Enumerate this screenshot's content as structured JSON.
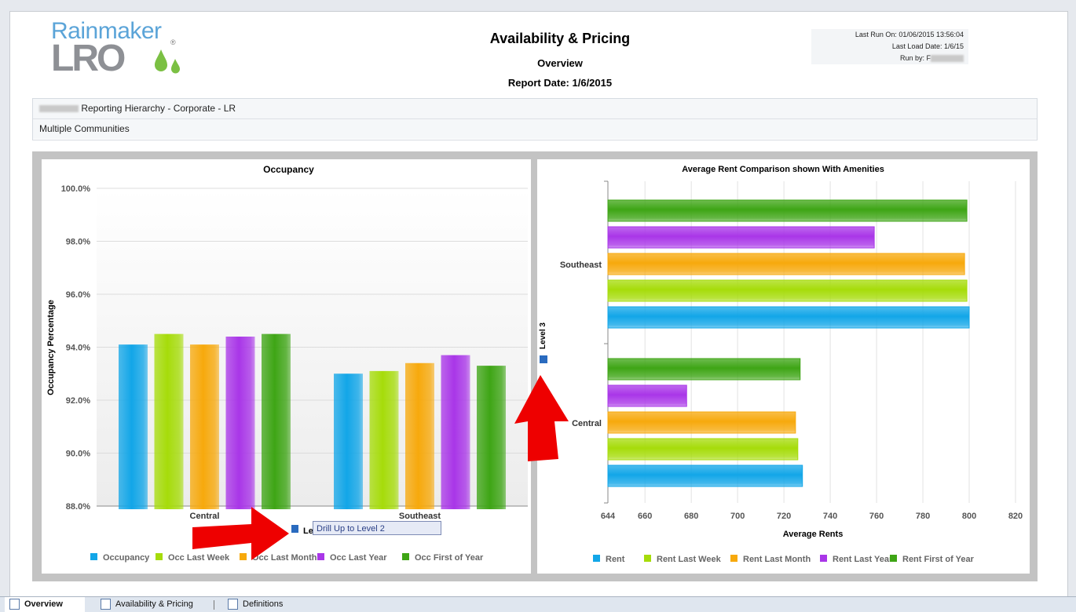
{
  "logo": {
    "line1": "Rainmaker",
    "line2": "LRO",
    "reg": "®"
  },
  "header": {
    "title": "Availability & Pricing",
    "subtitle": "Overview",
    "report_date": "Report Date: 1/6/2015",
    "last_run": "Last Run On: 01/06/2015 13:56:04",
    "last_load": "Last Load Date: 1/6/15",
    "run_by": "Run by: F"
  },
  "hierarchy": {
    "path": "Reporting Hierarchy - Corporate - LR",
    "scope": "Multiple Communities"
  },
  "drill": {
    "level_label": "Level 3",
    "drill_up": "Drill Up to Level 2",
    "side_label": "Level 3"
  },
  "colors": {
    "blue": "#12a6e8",
    "lime": "#a6dc0a",
    "orange": "#f7a90c",
    "purple": "#a936e8",
    "green": "#3ea515",
    "arrow": "#ee0000"
  },
  "tabs": [
    {
      "label": "Overview",
      "active": true
    },
    {
      "label": "Availability & Pricing",
      "active": false
    },
    {
      "label": "Definitions",
      "active": false
    }
  ],
  "chart_data": [
    {
      "type": "bar",
      "title": "Occupancy",
      "ylabel": "Occupancy Percentage",
      "xlabel": "",
      "categories": [
        "Central",
        "Southeast"
      ],
      "ylim": [
        88.0,
        100.0
      ],
      "yticks": [
        88.0,
        90.0,
        92.0,
        94.0,
        96.0,
        98.0,
        100.0
      ],
      "ytick_labels": [
        "88.0%",
        "90.0%",
        "92.0%",
        "94.0%",
        "96.0%",
        "98.0%",
        "100.0%"
      ],
      "series": [
        {
          "name": "Occupancy",
          "color": "#12a6e8",
          "values": [
            94.1,
            93.0
          ]
        },
        {
          "name": "Occ Last Week",
          "color": "#a6dc0a",
          "values": [
            94.5,
            93.1
          ]
        },
        {
          "name": "Occ Last Month",
          "color": "#f7a90c",
          "values": [
            94.1,
            93.4
          ]
        },
        {
          "name": "Occ Last Year",
          "color": "#a936e8",
          "values": [
            94.4,
            93.7
          ]
        },
        {
          "name": "Occ First of Year",
          "color": "#3ea515",
          "values": [
            94.5,
            93.3
          ]
        }
      ],
      "grid": true,
      "legend": "bottom"
    },
    {
      "type": "bar",
      "orientation": "horizontal",
      "title": "Average Rent Comparison shown With Amenities",
      "xlabel": "Average Rents",
      "ylabel": "",
      "categories": [
        "Southeast",
        "Central"
      ],
      "xlim": [
        644,
        820
      ],
      "xticks": [
        644,
        660,
        680,
        700,
        720,
        740,
        760,
        780,
        800,
        820
      ],
      "series": [
        {
          "name": "Rent",
          "color": "#12a6e8",
          "values": [
            800,
            728
          ]
        },
        {
          "name": "Rent Last Week",
          "color": "#a6dc0a",
          "values": [
            799,
            726
          ]
        },
        {
          "name": "Rent Last Month",
          "color": "#f7a90c",
          "values": [
            798,
            725
          ]
        },
        {
          "name": "Rent Last Year",
          "color": "#a936e8",
          "values": [
            759,
            678
          ]
        },
        {
          "name": "Rent First of Year",
          "color": "#3ea515",
          "values": [
            799,
            727
          ]
        }
      ],
      "grid": true,
      "legend": "bottom"
    }
  ]
}
